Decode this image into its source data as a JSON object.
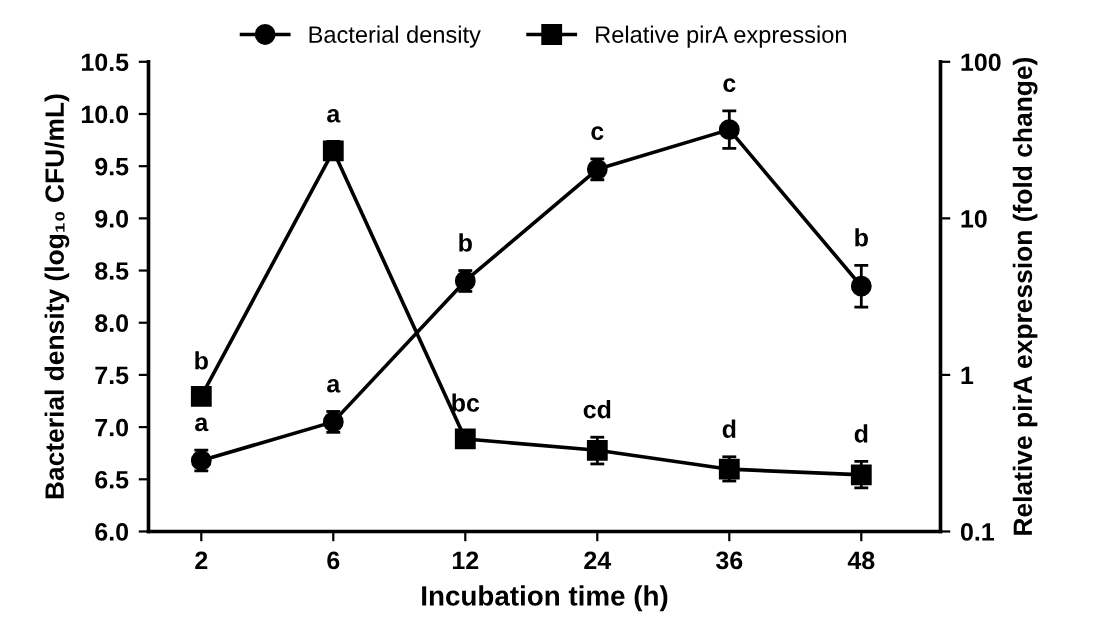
{
  "chart_data": {
    "type": "line",
    "xlabel": "Incubation time (h)",
    "ylabel": "Bacterial density (log₁₀ CFU/mL)",
    "y2label": "Relative pirA expression (fold change)",
    "categories": [
      "2",
      "6",
      "12",
      "24",
      "36",
      "48"
    ],
    "ylim": [
      6.0,
      10.5
    ],
    "yticks": [
      {
        "value": 6.0,
        "label": "6.0"
      },
      {
        "value": 6.5,
        "label": "6.5"
      },
      {
        "value": 7.0,
        "label": "7.0"
      },
      {
        "value": 7.5,
        "label": "7.5"
      },
      {
        "value": 8.0,
        "label": "8.0"
      },
      {
        "value": 8.5,
        "label": "8.5"
      },
      {
        "value": 9.0,
        "label": "9.0"
      },
      {
        "value": 9.5,
        "label": "9.5"
      },
      {
        "value": 10.0,
        "label": "10.0"
      },
      {
        "value": 10.5,
        "label": "10.5"
      }
    ],
    "y2lim": [
      0.1,
      100
    ],
    "y2ticks": [
      0.1,
      1,
      10,
      100
    ],
    "log": "y2",
    "series": [
      {
        "name": "Bacterial density",
        "color": "#000000",
        "marker": "circle",
        "values": [
          6.68,
          7.05,
          8.4,
          9.47,
          9.85,
          8.35
        ],
        "errors": [
          0.1,
          0.1,
          0.1,
          0.1,
          0.18,
          0.2
        ],
        "value_labels": [
          "a",
          "a",
          "b",
          "c",
          "c",
          "b"
        ]
      },
      {
        "name": "Relative pirA expression",
        "color": "#000000",
        "marker": "square",
        "axis": "y2",
        "values": [
          0.73,
          27,
          0.39,
          0.33,
          0.25,
          0.23
        ],
        "errors": [
          [
            0.66,
            0.82
          ],
          [
            24,
            31
          ],
          null,
          [
            0.27,
            0.4
          ],
          [
            0.21,
            0.3
          ],
          [
            0.19,
            0.28
          ]
        ],
        "value_labels": [
          "b",
          "a",
          "bc",
          "cd",
          "d",
          "d"
        ]
      }
    ],
    "legend": "top",
    "grid": false,
    "line_style": "solid"
  }
}
